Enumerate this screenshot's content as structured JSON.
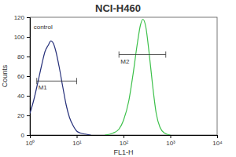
{
  "chart_data": {
    "type": "line",
    "title": "NCI-H460",
    "x_label": "FL1-H",
    "y_label": "Counts",
    "log": "x",
    "xlim": [
      1,
      10000
    ],
    "xticks": [
      {
        "value": 1,
        "label": "10⁰"
      },
      {
        "value": 10,
        "label": "10¹"
      },
      {
        "value": 100,
        "label": "10²"
      },
      {
        "value": 1000,
        "label": "10³"
      },
      {
        "value": 10000,
        "label": "10⁴"
      }
    ],
    "ylim": [
      0,
      120
    ],
    "yticks": [
      0,
      20,
      40,
      60,
      80,
      100,
      120
    ],
    "series": [
      {
        "color": "#26307a",
        "x": [
          1,
          1.2,
          1.5,
          1.8,
          2.1,
          2.5,
          2.8,
          3.2,
          3.6,
          4.2,
          5,
          6,
          7,
          8.5,
          10,
          12,
          15,
          20
        ],
        "values": [
          22,
          35,
          55,
          72,
          85,
          92,
          96,
          93,
          85,
          70,
          50,
          30,
          18,
          9,
          4,
          2,
          1,
          0
        ]
      },
      {
        "color": "#3cc04a",
        "x": [
          40,
          60,
          80,
          100,
          130,
          160,
          200,
          230,
          260,
          300,
          350,
          420,
          500,
          600,
          750,
          1000
        ],
        "values": [
          0,
          2,
          6,
          15,
          35,
          62,
          95,
          112,
          118,
          110,
          85,
          50,
          22,
          8,
          2,
          0
        ]
      }
    ],
    "annotations": [
      {
        "text": "control",
        "x": 1.2,
        "y": 108
      }
    ],
    "gates": [
      {
        "label": "M1",
        "x": [
          1.4,
          10
        ],
        "y": 55
      },
      {
        "label": "M2",
        "x": [
          80,
          800
        ],
        "y": 82
      }
    ]
  }
}
